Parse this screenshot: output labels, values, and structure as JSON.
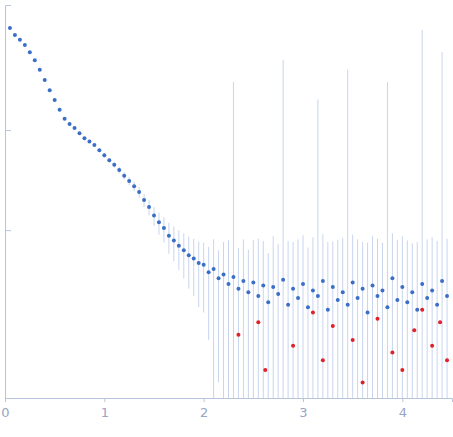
{
  "chart_data": {
    "type": "scatter",
    "log": "y",
    "tick_labels": "x",
    "grid": false,
    "xlim": [
      0,
      4.5
    ],
    "xticks": [
      0,
      1,
      2,
      3,
      4
    ],
    "ylim": [
      0.00021,
      1.78
    ],
    "yticks": [
      0.01,
      0.1
    ],
    "series": [
      {
        "color": "#3b6fc7",
        "marker": "circle",
        "x": [
          0.05,
          0.1,
          0.15,
          0.2,
          0.25,
          0.3,
          0.35,
          0.4,
          0.45,
          0.5,
          0.55,
          0.6,
          0.65,
          0.7,
          0.75,
          0.8,
          0.85,
          0.9,
          0.95,
          1.0,
          1.05,
          1.1,
          1.15,
          1.2,
          1.25,
          1.3,
          1.35,
          1.4,
          1.45,
          1.5,
          1.55,
          1.6,
          1.65,
          1.7,
          1.75,
          1.8,
          1.85,
          1.9,
          1.95,
          2.0,
          2.05,
          2.1,
          2.15,
          2.2,
          2.25,
          2.3,
          2.35,
          2.4,
          2.45,
          2.5,
          2.55,
          2.6,
          2.65,
          2.7,
          2.75,
          2.8,
          2.85,
          2.9,
          2.95,
          3.0,
          3.05,
          3.1,
          3.15,
          3.2,
          3.25,
          3.3,
          3.35,
          3.4,
          3.45,
          3.5,
          3.55,
          3.6,
          3.65,
          3.7,
          3.75,
          3.8,
          3.85,
          3.9,
          3.95,
          4.0,
          4.05,
          4.1,
          4.15,
          4.2,
          4.25,
          4.3,
          4.35,
          4.4,
          4.45
        ],
        "values": [
          1.05,
          0.89,
          0.8,
          0.71,
          0.6,
          0.5,
          0.4,
          0.316,
          0.25,
          0.2,
          0.16,
          0.13,
          0.115,
          0.105,
          0.093,
          0.083,
          0.077,
          0.071,
          0.063,
          0.056,
          0.05,
          0.045,
          0.04,
          0.035,
          0.031,
          0.0275,
          0.024,
          0.02,
          0.017,
          0.014,
          0.012,
          0.0105,
          0.0088,
          0.0079,
          0.007,
          0.0063,
          0.0056,
          0.0052,
          0.0047,
          0.0045,
          0.0038,
          0.0041,
          0.0033,
          0.0036,
          0.0029,
          0.0034,
          0.0026,
          0.0031,
          0.0024,
          0.003,
          0.0022,
          0.0028,
          0.0019,
          0.0027,
          0.0023,
          0.0032,
          0.0018,
          0.0026,
          0.0021,
          0.0029,
          0.0017,
          0.0025,
          0.0022,
          0.0031,
          0.0016,
          0.0027,
          0.002,
          0.0024,
          0.0018,
          0.003,
          0.0021,
          0.0026,
          0.0015,
          0.0028,
          0.0022,
          0.0025,
          0.0017,
          0.0033,
          0.002,
          0.0027,
          0.0019,
          0.0024,
          0.0016,
          0.0029,
          0.0021,
          0.0025,
          0.0018,
          0.0031,
          0.0022
        ],
        "errors": [
          0.02,
          0.015,
          0.012,
          0.01,
          0.008,
          0.007,
          0.006,
          0.005,
          0.004,
          0.004,
          0.003,
          0.003,
          0.003,
          0.003,
          0.003,
          0.003,
          0.003,
          0.003,
          0.003,
          0.003,
          0.003,
          0.003,
          0.003,
          0.003,
          0.003,
          0.003,
          0.003,
          0.003,
          0.003,
          0.003,
          0.003,
          0.003,
          0.003,
          0.003,
          0.003,
          0.003,
          0.003,
          0.003,
          0.003,
          0.003,
          0.003,
          0.004,
          0.003,
          0.004,
          0.005,
          0.3,
          0.004,
          0.005,
          0.004,
          0.005,
          0.006,
          0.005,
          0.004,
          0.006,
          0.005,
          0.5,
          0.006,
          0.005,
          0.006,
          0.006,
          0.005,
          0.006,
          0.2,
          0.006,
          0.006,
          0.005,
          0.006,
          0.006,
          0.4,
          0.006,
          0.006,
          0.005,
          0.006,
          0.006,
          0.006,
          0.005,
          0.3,
          0.006,
          0.006,
          0.006,
          0.006,
          0.005,
          0.006,
          1.0,
          0.006,
          0.006,
          0.006,
          0.6,
          0.006
        ]
      },
      {
        "color": "#e0202a",
        "marker": "circle",
        "x": [
          2.35,
          2.55,
          2.62,
          2.9,
          3.1,
          3.2,
          3.3,
          3.5,
          3.6,
          3.75,
          3.9,
          4.0,
          4.12,
          4.2,
          4.3,
          4.38,
          4.45
        ],
        "values": [
          0.0009,
          0.0012,
          0.0004,
          0.0007,
          0.0015,
          0.0005,
          0.0011,
          0.0008,
          0.0003,
          0.0013,
          0.0006,
          0.0004,
          0.001,
          0.0016,
          0.0007,
          0.0012,
          0.0005
        ]
      }
    ]
  }
}
